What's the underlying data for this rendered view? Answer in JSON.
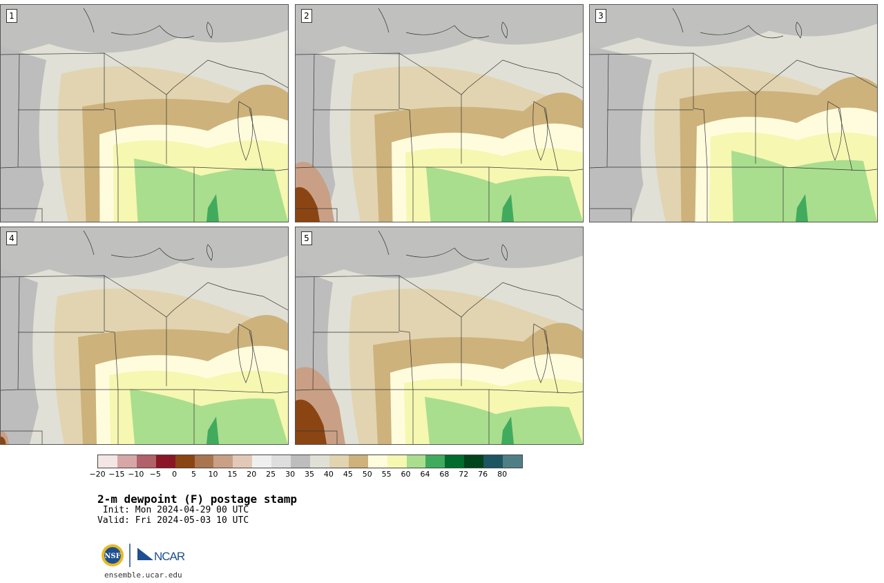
{
  "panels": [
    {
      "label": "1",
      "cool_west": 0.45,
      "moist_extent": 0.55,
      "dry_sw": 0.0
    },
    {
      "label": "2",
      "cool_west": 0.35,
      "moist_extent": 0.5,
      "dry_sw": 0.7
    },
    {
      "label": "3",
      "cool_west": 0.75,
      "moist_extent": 0.6,
      "dry_sw": 0.0
    },
    {
      "label": "4",
      "cool_west": 0.3,
      "moist_extent": 0.5,
      "dry_sw": 0.15
    },
    {
      "label": "5",
      "cool_west": 0.3,
      "moist_extent": 0.45,
      "dry_sw": 0.9
    }
  ],
  "colorbar": {
    "colors": [
      "#f3e6e4",
      "#d7a7a7",
      "#b0616a",
      "#8c1625",
      "#8b4513",
      "#a97550",
      "#c9a085",
      "#e2c9b7",
      "#efefef",
      "#dedede",
      "#bdbdbd",
      "#e0e0d6",
      "#e2d4b0",
      "#cdb27c",
      "#fffcde",
      "#f6f7b1",
      "#a9de8e",
      "#41ab5d",
      "#006d2c",
      "#00441b",
      "#1d5561",
      "#4f7f86"
    ],
    "ticks": [
      "−20",
      "−15",
      "−10",
      "−5",
      "0",
      "5",
      "10",
      "15",
      "20",
      "25",
      "30",
      "35",
      "40",
      "45",
      "50",
      "55",
      "60",
      "64",
      "68",
      "72",
      "76",
      "80"
    ]
  },
  "title": "2-m dewpoint (F) postage stamp",
  "init": " Init: Mon 2024-04-29 00 UTC",
  "valid": "Valid: Fri 2024-05-03 10 UTC",
  "logos": {
    "nsf": "NSF",
    "ncar": "NCAR"
  },
  "url": "ensemble.ucar.edu"
}
